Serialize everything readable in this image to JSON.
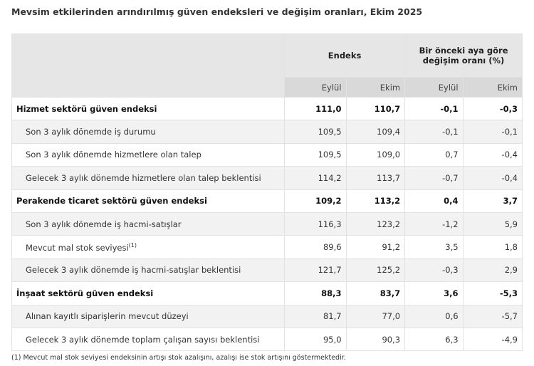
{
  "title": "Mevsim etkilerinden arındırılmış güven endeksleri ve değişim oranları, Ekim 2025",
  "header": {
    "group1": "Endeks",
    "group2": "Bir önceki aya göre değişim oranı (%)",
    "cols": [
      "Eylül",
      "Ekim",
      "Eylül",
      "Ekim"
    ]
  },
  "rows": [
    {
      "label": "Hizmet sektörü güven endeksi",
      "values": [
        "111,0",
        "110,7",
        "-0,1",
        "-0,3"
      ],
      "bold": true
    },
    {
      "label": "Son 3 aylık dönemde iş durumu",
      "values": [
        "109,5",
        "109,4",
        "-0,1",
        "-0,1"
      ]
    },
    {
      "label": "Son 3 aylık dönemde hizmetlere olan talep",
      "values": [
        "109,5",
        "109,0",
        "0,7",
        "-0,4"
      ]
    },
    {
      "label": "Gelecek 3 aylık dönemde hizmetlere olan talep beklentisi",
      "values": [
        "114,2",
        "113,7",
        "-0,7",
        "-0,4"
      ]
    },
    {
      "label": "Perakende ticaret sektörü güven endeksi",
      "values": [
        "109,2",
        "113,2",
        "0,4",
        "3,7"
      ],
      "bold": true
    },
    {
      "label": "Son 3 aylık dönemde iş hacmi-satışlar",
      "values": [
        "116,3",
        "123,2",
        "-1,2",
        "5,9"
      ]
    },
    {
      "label": "Mevcut mal stok seviyesi",
      "sup": "(1)",
      "values": [
        "89,6",
        "91,2",
        "3,5",
        "1,8"
      ]
    },
    {
      "label": "Gelecek 3 aylık dönemde iş hacmi-satışlar beklentisi",
      "values": [
        "121,7",
        "125,2",
        "-0,3",
        "2,9"
      ]
    },
    {
      "label": "İnşaat sektörü güven endeksi",
      "values": [
        "88,3",
        "83,7",
        "3,6",
        "-5,3"
      ],
      "bold": true
    },
    {
      "label": "Alınan kayıtlı siparişlerin mevcut düzeyi",
      "values": [
        "81,7",
        "77,0",
        "0,6",
        "-5,7"
      ]
    },
    {
      "label": "Gelecek 3 aylık dönemde toplam çalışan sayısı beklentisi",
      "values": [
        "95,0",
        "90,3",
        "6,3",
        "-4,9"
      ]
    }
  ],
  "footnote": "(1) Mevcut mal stok seviyesi endeksinin artışı stok azalışını, azalışı ise stok artışını göstermektedir."
}
